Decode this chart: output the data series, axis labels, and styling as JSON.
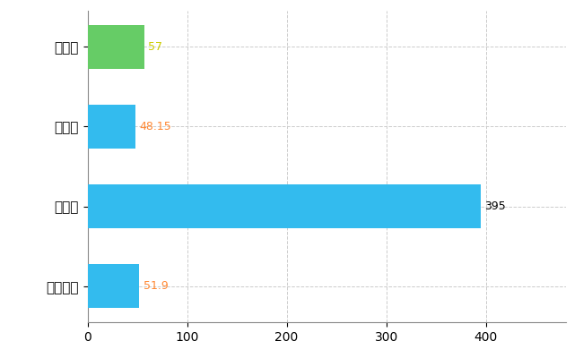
{
  "categories": [
    "下野市",
    "県平均",
    "県最大",
    "全国平均"
  ],
  "values": [
    57,
    48.15,
    395,
    51.9
  ],
  "bar_colors": [
    "#66cc66",
    "#33bbee",
    "#33bbee",
    "#33bbee"
  ],
  "value_labels": [
    "57",
    "48.15",
    "395",
    "51.9"
  ],
  "label_colors": [
    "#cccc00",
    "#ff8833",
    "#000000",
    "#ff8833"
  ],
  "xlim": [
    0,
    480
  ],
  "xticks": [
    0,
    100,
    200,
    300,
    400
  ],
  "background_color": "#ffffff",
  "grid_color": "#cccccc",
  "bar_height": 0.55,
  "ytick_fontsize": 11,
  "xtick_fontsize": 10,
  "label_fontsize": 9
}
